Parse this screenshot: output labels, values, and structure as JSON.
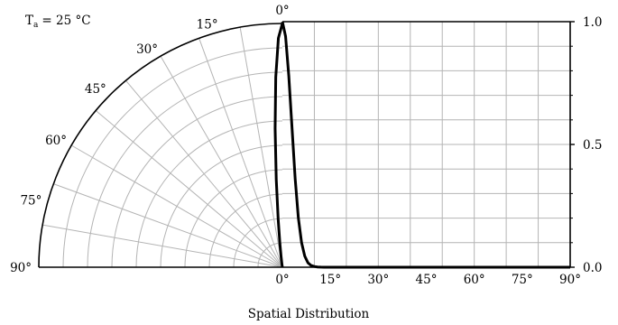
{
  "chart_data": {
    "type": "line",
    "title": "",
    "condition_label": "T",
    "condition_subscript": "a",
    "condition_value": "= 25 °C",
    "xlabel": "Spatial Distribution",
    "polar_angle_labels": [
      "0°",
      "15°",
      "30°",
      "45°",
      "60°",
      "75°",
      "90°"
    ],
    "x_tick_labels": [
      "0°",
      "15°",
      "30°",
      "45°",
      "60°",
      "75°",
      "90°"
    ],
    "y_tick_labels": [
      "0.0",
      "0.5",
      "1.0"
    ],
    "xlim": [
      0,
      90
    ],
    "ylim": [
      0,
      1
    ],
    "grid": true,
    "series": [
      {
        "x": [
          0,
          1,
          2,
          3,
          4,
          5,
          6,
          7,
          8,
          9,
          10,
          11,
          12,
          13,
          14,
          15,
          20,
          30,
          45,
          60,
          75,
          90
        ],
        "y": [
          1.0,
          0.94,
          0.78,
          0.57,
          0.36,
          0.2,
          0.1,
          0.045,
          0.018,
          0.007,
          0.003,
          0.001,
          0.0004,
          0.0001,
          0.0,
          0.0,
          0.0,
          0.0,
          0.0,
          0.0,
          0.0,
          0.0
        ]
      }
    ]
  }
}
